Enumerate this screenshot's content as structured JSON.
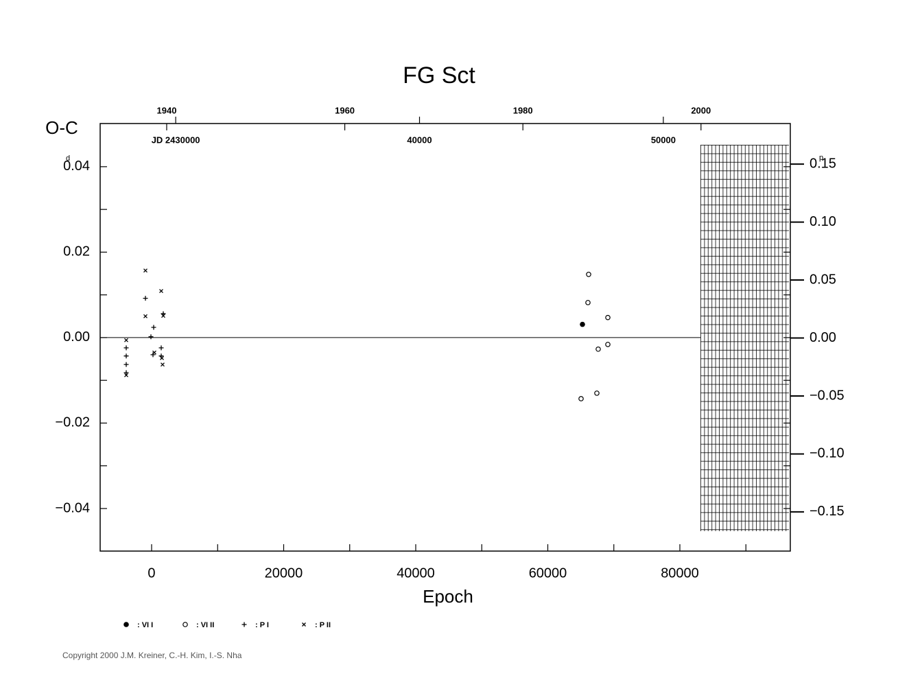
{
  "chart_data": {
    "type": "scatter",
    "title": "FG Sct",
    "y_label": "O-C",
    "y_unit": "d",
    "y2_unit": "p",
    "x_label": "Epoch",
    "copyright": "Copyright 2000 J.M. Kreiner, C.-H. Kim, I.-S. Nha",
    "xlim": [
      -7792,
      96727
    ],
    "xticks": [
      0,
      20000,
      40000,
      60000,
      80000
    ],
    "ylim": [
      -0.04996,
      0.0501
    ],
    "yticks": [
      0.04,
      0.02,
      {
        "value": 0,
        "label": "0.00"
      },
      {
        "value": -0.02,
        "label": "−0.02"
      },
      {
        "value": -0.04,
        "label": "−0.04"
      }
    ],
    "y2lim": [
      -0.1838,
      0.185
    ],
    "y2ticks": [
      0.15,
      {
        "value": 0.1,
        "label": "0.10"
      },
      0.05,
      {
        "value": 0,
        "label": "0.00"
      },
      {
        "value": -0.05,
        "label": "−0.05"
      },
      {
        "value": -0.1,
        "label": "−0.10"
      },
      {
        "value": -0.15,
        "label": "−0.15"
      }
    ],
    "x2lim": [
      1932.53,
      2010.03
    ],
    "x2ticks": [
      1940,
      1960,
      1980,
      2000
    ],
    "jd_ticks": [
      {
        "value": 2430000,
        "label": "JD 2430000"
      },
      {
        "value": 2440000,
        "label": "40000"
      },
      {
        "value": 2450000,
        "label": "50000"
      }
    ],
    "series": [
      {
        "name": ": VI I",
        "marker": "filled-circle",
        "color": "#000000",
        "x": [
          65247
        ],
        "values": [
          0.0031
        ]
      },
      {
        "name": ": VI II",
        "marker": "circle",
        "color": "#000000",
        "x": [
          66182,
          66078,
          69091,
          67636,
          69091,
          67429,
          65039
        ],
        "values": [
          0.0148,
          0.0082,
          0.0047,
          -0.0027,
          -0.0016,
          -0.013,
          -0.0143
        ]
      },
      {
        "name": ": P I",
        "marker": "plus",
        "color": "#000000",
        "x": [
          -3844,
          -3844,
          -3844,
          -3844,
          -935,
          312,
          -104,
          1455,
          1455,
          1766,
          208
        ],
        "values": [
          -0.0024,
          -0.0043,
          -0.0063,
          -0.0082,
          0.0092,
          0.0024,
          0.0002,
          -0.0024,
          -0.0043,
          0.0056,
          -0.004
        ]
      },
      {
        "name": ": P II",
        "marker": "x",
        "color": "#000000",
        "x": [
          -935,
          -935,
          1455,
          -3844,
          -3844,
          1766,
          416,
          1662,
          1558
        ],
        "values": [
          0.0157,
          0.005,
          0.0109,
          -0.0006,
          -0.0088,
          0.0051,
          -0.0035,
          -0.0063,
          -0.0048
        ]
      }
    ]
  }
}
